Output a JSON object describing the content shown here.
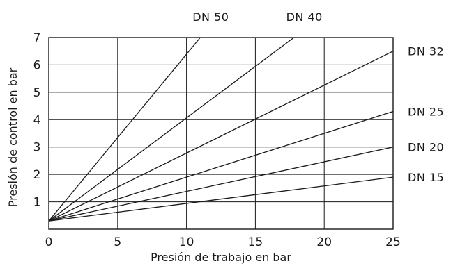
{
  "chart_data": {
    "type": "line",
    "xlabel": "Presión de trabajo en bar",
    "ylabel": "Presión de control en bar",
    "xlim": [
      0,
      25
    ],
    "ylim": [
      0,
      7
    ],
    "x_ticks": [
      0,
      5,
      10,
      15,
      20,
      25
    ],
    "y_ticks": [
      1,
      2,
      3,
      4,
      5,
      6,
      7
    ],
    "grid": true,
    "series": [
      {
        "name": "DN 50",
        "x": [
          0,
          11
        ],
        "y": [
          0.3,
          7
        ],
        "label_position": "top"
      },
      {
        "name": "DN 40",
        "x": [
          0,
          17.8
        ],
        "y": [
          0.3,
          7
        ],
        "label_position": "top"
      },
      {
        "name": "DN 32",
        "x": [
          0,
          25
        ],
        "y": [
          0.3,
          6.5
        ],
        "label_position": "right"
      },
      {
        "name": "DN 25",
        "x": [
          0,
          25
        ],
        "y": [
          0.3,
          4.3
        ],
        "label_position": "right"
      },
      {
        "name": "DN 20",
        "x": [
          0,
          25
        ],
        "y": [
          0.3,
          3.0
        ],
        "label_position": "right"
      },
      {
        "name": "DN 15",
        "x": [
          0,
          25
        ],
        "y": [
          0.3,
          1.9
        ],
        "label_position": "right"
      }
    ]
  }
}
